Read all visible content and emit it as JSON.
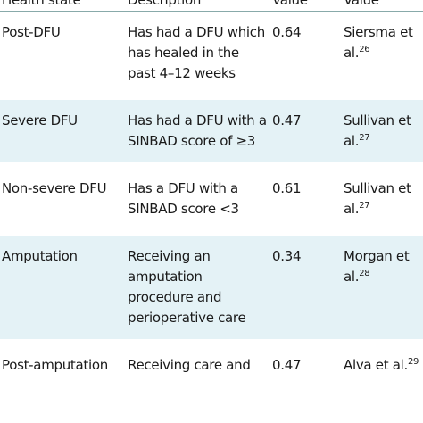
{
  "table": {
    "header": [
      "Health state",
      "Description",
      "Value",
      "Value"
    ],
    "rows": [
      [
        {
          "text": "Post-DFU"
        },
        {
          "text": "Has had a DFU which has healed in the past 4–12 weeks"
        },
        {
          "text": "0.64"
        },
        {
          "text": "Siersma et al.",
          "sup": "26"
        }
      ],
      [
        {
          "text": "Severe DFU"
        },
        {
          "text": "Has had a DFU with a SINBAD score of ≥3"
        },
        {
          "text": "0.47"
        },
        {
          "text": "Sullivan et al.",
          "sup": "27"
        }
      ],
      [
        {
          "text": "Non-severe DFU"
        },
        {
          "text": "Has a DFU with a SINBAD score <3"
        },
        {
          "text": "0.61"
        },
        {
          "text": "Sullivan et al.",
          "sup": "27"
        }
      ],
      [
        {
          "text": "Amputation"
        },
        {
          "text": "Receiving an amputation procedure and perioperative care"
        },
        {
          "text": "0.34"
        },
        {
          "text": "Morgan et al.",
          "sup": "28"
        }
      ],
      [
        {
          "text": "Post-amputation"
        },
        {
          "text": "Receiving care and"
        },
        {
          "text": "0.47"
        },
        {
          "text": "Alva et al.",
          "sup": "29"
        }
      ]
    ]
  }
}
